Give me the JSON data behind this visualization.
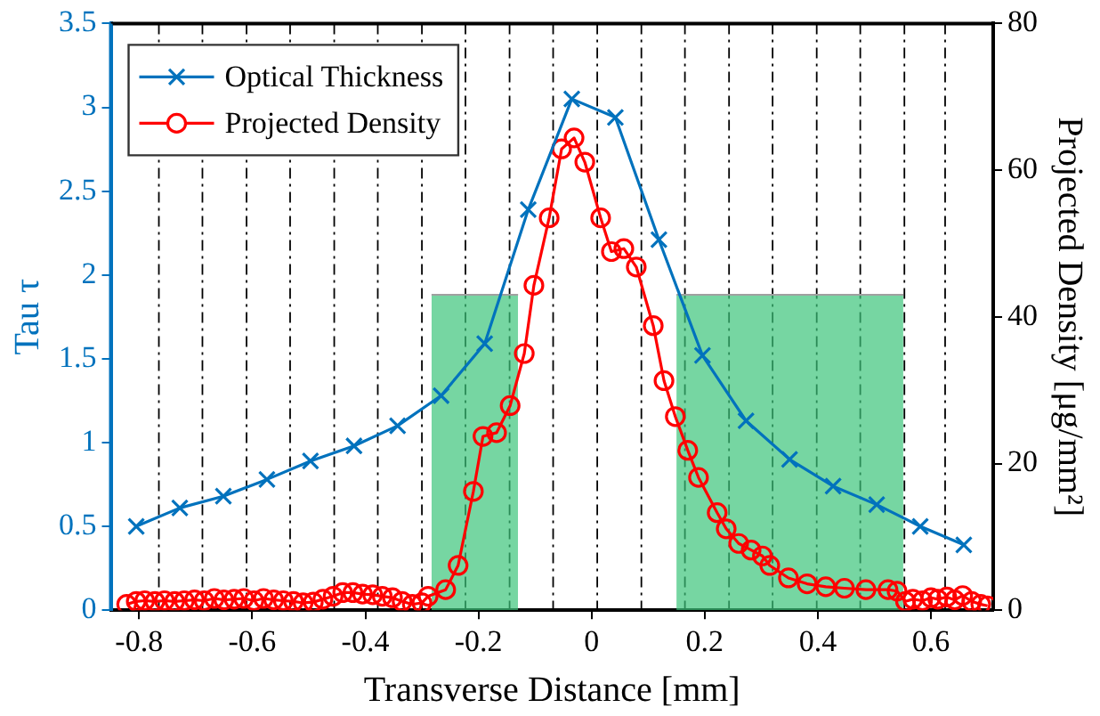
{
  "chart_data": {
    "type": "line",
    "xlabel": "Transverse Distance [mm]",
    "ylabel": "Tau τ",
    "y2label": "Projected Density [μg/mm²]",
    "xlim": [
      -0.85,
      0.71
    ],
    "xticks": [
      -0.8,
      -0.6,
      -0.4,
      -0.2,
      0,
      0.2,
      0.4,
      0.6
    ],
    "ylim": [
      0,
      3.5
    ],
    "yticks": [
      0,
      0.5,
      1,
      1.5,
      2,
      2.5,
      3,
      3.5
    ],
    "y2lim": [
      0,
      80
    ],
    "y2ticks": [
      0,
      20,
      40,
      60,
      80
    ],
    "grid": false,
    "legend": "top left",
    "series": [
      {
        "name": "Optical Thickness",
        "color": "#0072bd",
        "marker": "cross",
        "x": [
          -0.805,
          -0.728,
          -0.651,
          -0.574,
          -0.497,
          -0.42,
          -0.343,
          -0.266,
          -0.189,
          -0.112,
          -0.035,
          0.042,
          0.119,
          0.196,
          0.273,
          0.35,
          0.427,
          0.504,
          0.581,
          0.658
        ],
        "values": [
          0.5,
          0.61,
          0.68,
          0.78,
          0.89,
          0.98,
          1.1,
          1.28,
          1.59,
          2.39,
          3.05,
          2.94,
          2.21,
          1.52,
          1.13,
          0.9,
          0.74,
          0.63,
          0.5,
          0.39
        ]
      },
      {
        "name": "Projected Density",
        "color": "#ff0000",
        "marker": "circle",
        "axis": "y2",
        "x": [
          -0.822,
          -0.805,
          -0.79,
          -0.772,
          -0.755,
          -0.737,
          -0.72,
          -0.702,
          -0.685,
          -0.667,
          -0.65,
          -0.632,
          -0.615,
          -0.597,
          -0.58,
          -0.562,
          -0.545,
          -0.527,
          -0.51,
          -0.492,
          -0.475,
          -0.457,
          -0.44,
          -0.422,
          -0.405,
          -0.387,
          -0.37,
          -0.352,
          -0.335,
          -0.317,
          -0.3,
          -0.289,
          -0.258,
          -0.236,
          -0.209,
          -0.192,
          -0.168,
          -0.144,
          -0.119,
          -0.102,
          -0.075,
          -0.053,
          -0.031,
          -0.012,
          0.016,
          0.035,
          0.057,
          0.079,
          0.109,
          0.128,
          0.148,
          0.17,
          0.189,
          0.222,
          0.238,
          0.26,
          0.282,
          0.302,
          0.315,
          0.348,
          0.381,
          0.414,
          0.447,
          0.485,
          0.524,
          0.54,
          0.555,
          0.568,
          0.585,
          0.6,
          0.612,
          0.628,
          0.642,
          0.656,
          0.672,
          0.688,
          0.7
        ],
        "values": [
          0.8,
          1.2,
          1.3,
          1.2,
          1.3,
          1.2,
          1.3,
          1.4,
          1.3,
          1.6,
          1.4,
          1.5,
          1.6,
          1.3,
          1.6,
          1.4,
          1.3,
          1.2,
          1.0,
          1.1,
          1.5,
          1.9,
          2.4,
          2.4,
          2.2,
          2.1,
          1.9,
          1.7,
          1.2,
          0.8,
          1.0,
          1.9,
          2.8,
          6.1,
          16.2,
          23.7,
          24.2,
          27.9,
          35,
          44.3,
          53.5,
          62.9,
          64.4,
          61.1,
          53.5,
          48.9,
          49.3,
          46.8,
          38.8,
          31.3,
          26.4,
          21.8,
          18.1,
          13.3,
          11.1,
          9.1,
          8.2,
          7.4,
          6.1,
          4.4,
          3.6,
          3.2,
          3.0,
          2.8,
          2.8,
          2.6,
          1.2,
          1.5,
          1.3,
          1.7,
          1.5,
          1.8,
          1.4,
          2.0,
          1.2,
          0.8,
          0.6
        ]
      },
      {
        "type": "area",
        "color": "#3cc47a",
        "marker": "none",
        "axis": "y2",
        "x": [
          -0.283,
          -0.13
        ],
        "values": [
          43,
          43
        ]
      },
      {
        "type": "area",
        "color": "#3cc47a",
        "marker": "none",
        "axis": "y2",
        "x": [
          0.15,
          0.551
        ],
        "values": [
          43,
          43
        ]
      }
    ],
    "ref_lines": [
      {
        "axis": "x",
        "value": -0.765,
        "color": "#000000",
        "line_style": "dashed"
      },
      {
        "axis": "x",
        "value": -0.688,
        "color": "#000000",
        "line_style": "dashed"
      },
      {
        "axis": "x",
        "value": -0.61,
        "color": "#000000",
        "line_style": "dashed"
      },
      {
        "axis": "x",
        "value": -0.533,
        "color": "#000000",
        "line_style": "dashed"
      },
      {
        "axis": "x",
        "value": -0.455,
        "color": "#000000",
        "line_style": "dashed"
      },
      {
        "axis": "x",
        "value": -0.378,
        "color": "#000000",
        "line_style": "dashed"
      },
      {
        "axis": "x",
        "value": -0.3,
        "color": "#000000",
        "line_style": "dashed"
      },
      {
        "axis": "x",
        "value": -0.223,
        "color": "#000000",
        "line_style": "dashed"
      },
      {
        "axis": "x",
        "value": -0.145,
        "color": "#000000",
        "line_style": "dashed"
      },
      {
        "axis": "x",
        "value": -0.068,
        "color": "#000000",
        "line_style": "dashed"
      },
      {
        "axis": "x",
        "value": 0.01,
        "color": "#000000",
        "line_style": "dashed"
      },
      {
        "axis": "x",
        "value": 0.088,
        "color": "#000000",
        "line_style": "dashed"
      },
      {
        "axis": "x",
        "value": 0.165,
        "color": "#000000",
        "line_style": "dashed"
      },
      {
        "axis": "x",
        "value": 0.243,
        "color": "#000000",
        "line_style": "dashed"
      },
      {
        "axis": "x",
        "value": 0.32,
        "color": "#000000",
        "line_style": "dashed"
      },
      {
        "axis": "x",
        "value": 0.398,
        "color": "#000000",
        "line_style": "dashed"
      },
      {
        "axis": "x",
        "value": 0.475,
        "color": "#000000",
        "line_style": "dashed"
      },
      {
        "axis": "x",
        "value": 0.553,
        "color": "#000000",
        "line_style": "dashed"
      },
      {
        "axis": "x",
        "value": 0.625,
        "color": "#000000",
        "line_style": "dashed"
      }
    ]
  }
}
